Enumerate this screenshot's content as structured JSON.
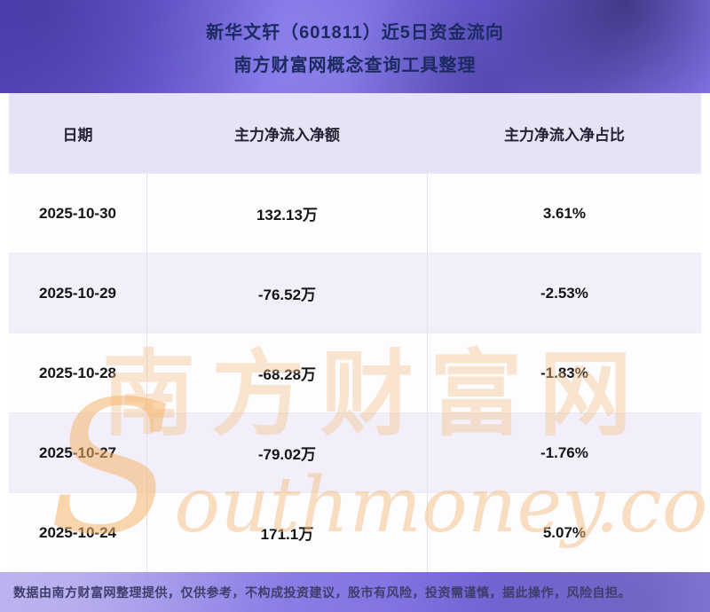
{
  "header": {
    "title_line1": "新华文轩（601811）近5日资金流向",
    "title_line2": "南方财富网概念查询工具整理"
  },
  "table": {
    "columns": [
      "日期",
      "主力净流入净额",
      "主力净流入净占比"
    ],
    "rows": [
      {
        "date": "2025-10-30",
        "net_inflow": "132.13万",
        "net_ratio": "3.61%"
      },
      {
        "date": "2025-10-29",
        "net_inflow": "-76.52万",
        "net_ratio": "-2.53%"
      },
      {
        "date": "2025-10-28",
        "net_inflow": "-68.28万",
        "net_ratio": "-1.83%"
      },
      {
        "date": "2025-10-27",
        "net_inflow": "-79.02万",
        "net_ratio": "-1.76%"
      },
      {
        "date": "2025-10-24",
        "net_inflow": "171.1万",
        "net_ratio": "5.07%"
      }
    ]
  },
  "watermark": {
    "text_cn": "南方财富网",
    "text_en": "Southmoney.com"
  },
  "footer": {
    "disclaimer": "数据由南方财富网整理提供，仅供参考，不构成投资建议，股市有风险，投资需谨慎，据此操作，风险自担。"
  },
  "colors": {
    "banner_purple": "#7c6fe8",
    "header_bg": "#e7e3f6",
    "row_alt_bg": "#f2effa",
    "title_text": "#1b2a60",
    "watermark_orange": "#f3c38c"
  },
  "chart_data": {
    "type": "table",
    "title": "新华文轩（601811）近5日资金流向",
    "subtitle": "南方财富网概念查询工具整理",
    "columns": [
      "日期",
      "主力净流入净额",
      "主力净流入净占比"
    ],
    "rows": [
      [
        "2025-10-30",
        "132.13万",
        "3.61%"
      ],
      [
        "2025-10-29",
        "-76.52万",
        "-2.53%"
      ],
      [
        "2025-10-28",
        "-68.28万",
        "-1.83%"
      ],
      [
        "2025-10-27",
        "-79.02万",
        "-1.76%"
      ],
      [
        "2025-10-24",
        "171.1万",
        "5.07%"
      ]
    ],
    "net_inflow_wan": [
      132.13,
      -76.52,
      -68.28,
      -79.02,
      171.1
    ],
    "net_ratio_pct": [
      3.61,
      -2.53,
      -1.83,
      -1.76,
      5.07
    ]
  }
}
